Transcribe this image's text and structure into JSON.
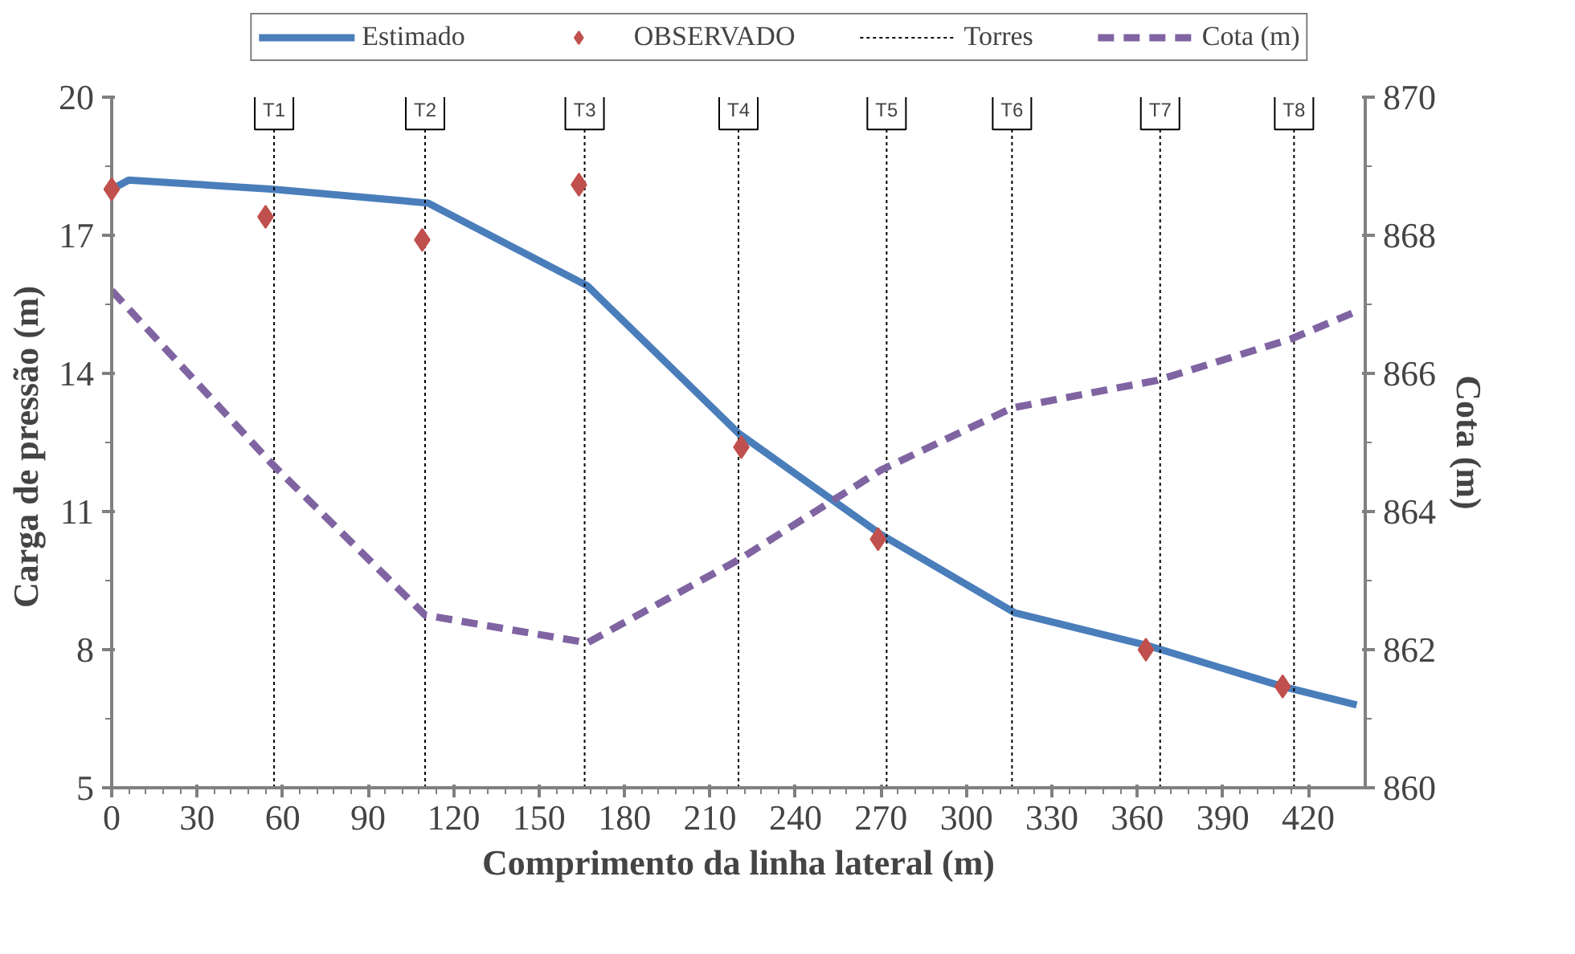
{
  "chart_data": {
    "type": "line",
    "xlabel": "Comprimento da linha lateral (m)",
    "ylabel": "Carga de pressão  (m)",
    "y2label": "Cota (m)",
    "xlim": [
      0,
      440
    ],
    "xticks": [
      0,
      30,
      60,
      90,
      120,
      150,
      180,
      210,
      240,
      270,
      300,
      330,
      360,
      390,
      420
    ],
    "ylim": [
      5,
      20
    ],
    "yticks": [
      5,
      8,
      11,
      14,
      17,
      20
    ],
    "y2lim": [
      860,
      870
    ],
    "y2ticks": [
      860,
      862,
      864,
      866,
      868,
      870
    ],
    "legend": "top",
    "series": [
      {
        "name": "Estimado",
        "color": "#4a7ebb",
        "line_style": "solid",
        "x": [
          0,
          6,
          57,
          111,
          167,
          220,
          270,
          317,
          363,
          411,
          437
        ],
        "values": [
          18.0,
          18.2,
          18.0,
          17.7,
          15.9,
          12.7,
          10.5,
          8.8,
          8.1,
          7.2,
          6.8
        ]
      },
      {
        "name": "OBSERVADO",
        "type": "scatter",
        "marker": "diamond",
        "color": "#c0504d",
        "x": [
          0,
          54,
          109,
          164,
          221,
          269,
          363,
          411
        ],
        "values": [
          18.0,
          17.4,
          16.9,
          18.1,
          12.4,
          10.4,
          8.0,
          7.2
        ]
      },
      {
        "name": "Torres",
        "color": "#000000",
        "line_style": "dotted",
        "x": [
          57,
          57,
          null,
          110,
          110,
          null,
          166,
          166,
          null,
          220,
          220,
          null,
          272,
          272,
          null,
          316,
          316,
          null,
          368,
          368,
          null,
          415,
          415
        ],
        "values": [
          5,
          19.3,
          null,
          5,
          19.3,
          null,
          5,
          19.3,
          null,
          5,
          19.3,
          null,
          5,
          19.3,
          null,
          5,
          19.3,
          null,
          5,
          19.3,
          null,
          5,
          19.3
        ]
      },
      {
        "name": "Cota (m)",
        "axis": "y2",
        "color": "#8064a2",
        "line_style": "dashed",
        "x": [
          0,
          56,
          110,
          167,
          220,
          270,
          316,
          367,
          414,
          437
        ],
        "values": [
          867.2,
          864.7,
          862.5,
          862.1,
          863.3,
          864.6,
          865.5,
          865.9,
          866.5,
          866.9
        ]
      }
    ],
    "annotations": [
      {
        "text": "T1",
        "x": 57,
        "y": 19.3
      },
      {
        "text": "T2",
        "x": 110,
        "y": 19.3
      },
      {
        "text": "T3",
        "x": 166,
        "y": 19.3
      },
      {
        "text": "T4",
        "x": 220,
        "y": 19.3
      },
      {
        "text": "T5",
        "x": 272,
        "y": 19.3
      },
      {
        "text": "T6",
        "x": 316,
        "y": 19.3
      },
      {
        "text": "T7",
        "x": 368,
        "y": 19.3
      },
      {
        "text": "T8",
        "x": 415,
        "y": 19.3
      }
    ]
  }
}
